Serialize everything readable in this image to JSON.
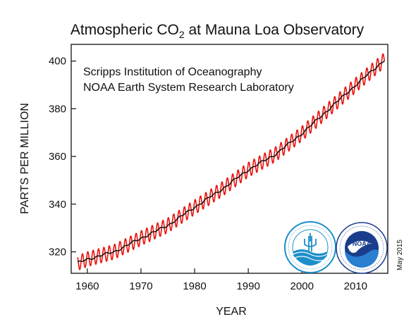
{
  "chart_data": {
    "type": "line",
    "title_main": "Atmospheric CO",
    "title_sub": "2",
    "title_rest": " at Mauna Loa Observatory",
    "source_lines": [
      "Scripps Institution of Oceanography",
      "NOAA Earth System Research Laboratory"
    ],
    "xlabel": "YEAR",
    "ylabel": "PARTS PER MILLION",
    "xlim": [
      1957,
      2016
    ],
    "ylim": [
      311,
      407
    ],
    "xticks": [
      1960,
      1970,
      1980,
      1990,
      2000,
      2010
    ],
    "yticks": [
      320,
      340,
      360,
      380,
      400
    ],
    "date_label": "May 2015",
    "grid": false,
    "series": [
      {
        "color": "#e8120c",
        "style": "seasonal",
        "description_key": "monthly-mean",
        "seasonal_amplitude": 3.1
      },
      {
        "color": "#111111",
        "style": "trend"
      }
    ],
    "trend": {
      "x": [
        1958.2,
        1960,
        1965,
        1970,
        1975,
        1980,
        1985,
        1990,
        1995,
        2000,
        2005,
        2010,
        2015.4
      ],
      "y": [
        315.3,
        316.9,
        320.0,
        325.7,
        331.1,
        338.7,
        346.1,
        354.4,
        360.8,
        369.6,
        379.8,
        389.9,
        400.5
      ]
    },
    "logos": [
      {
        "icon": "scripps-logo-icon",
        "color": "#1c8fc9"
      },
      {
        "icon": "noaa-logo-icon",
        "color": "#1a3e8c"
      }
    ]
  }
}
